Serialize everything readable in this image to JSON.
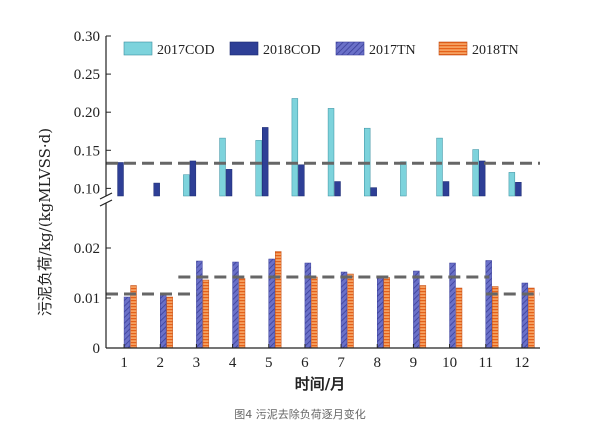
{
  "caption": "图4 污泥去除负荷逐月变化",
  "chart_data": {
    "type": "bar",
    "xlabel": "时间/月",
    "ylabel": "污泥负荷/kg/(kgMLVSS·d)",
    "categories": [
      "1",
      "2",
      "3",
      "4",
      "5",
      "6",
      "7",
      "8",
      "9",
      "10",
      "11",
      "12"
    ],
    "upper_axis": {
      "ylim": [
        0.09,
        0.3
      ],
      "ticks": [
        "0.10",
        "0.15",
        "0.20",
        "0.25",
        "0.30"
      ]
    },
    "lower_axis": {
      "ylim": [
        0,
        0.029
      ],
      "ticks": [
        "0",
        "0.01",
        "0.02"
      ]
    },
    "series": [
      {
        "name": "2017COD",
        "axis": "upper",
        "color": "#7dd3dc",
        "values": [
          0.09,
          0.086,
          0.118,
          0.166,
          0.163,
          0.218,
          0.205,
          0.179,
          0.135,
          0.166,
          0.151,
          0.121
        ]
      },
      {
        "name": "2018COD",
        "axis": "upper",
        "color": "#2e3f96",
        "values": [
          0.134,
          0.107,
          0.136,
          0.125,
          0.18,
          0.131,
          0.109,
          0.101,
          0.085,
          0.109,
          0.136,
          0.108
        ]
      },
      {
        "name": "2017TN",
        "axis": "lower",
        "color": "#5a5fbf",
        "values": [
          0.0102,
          0.011,
          0.0174,
          0.0172,
          0.0178,
          0.017,
          0.0152,
          0.0143,
          0.0154,
          0.017,
          0.0175,
          0.013
        ]
      },
      {
        "name": "2018TN",
        "axis": "lower",
        "color": "#f07f2e",
        "values": [
          0.0125,
          0.0102,
          0.0136,
          0.0139,
          0.0193,
          0.0142,
          0.0148,
          0.0141,
          0.0125,
          0.012,
          0.0123,
          0.012
        ]
      }
    ],
    "reference_lines": [
      {
        "axis": "upper",
        "value": 0.133
      },
      {
        "axis": "lower",
        "value": 0.0108
      },
      {
        "axis": "lower",
        "value": 0.0142
      }
    ]
  }
}
